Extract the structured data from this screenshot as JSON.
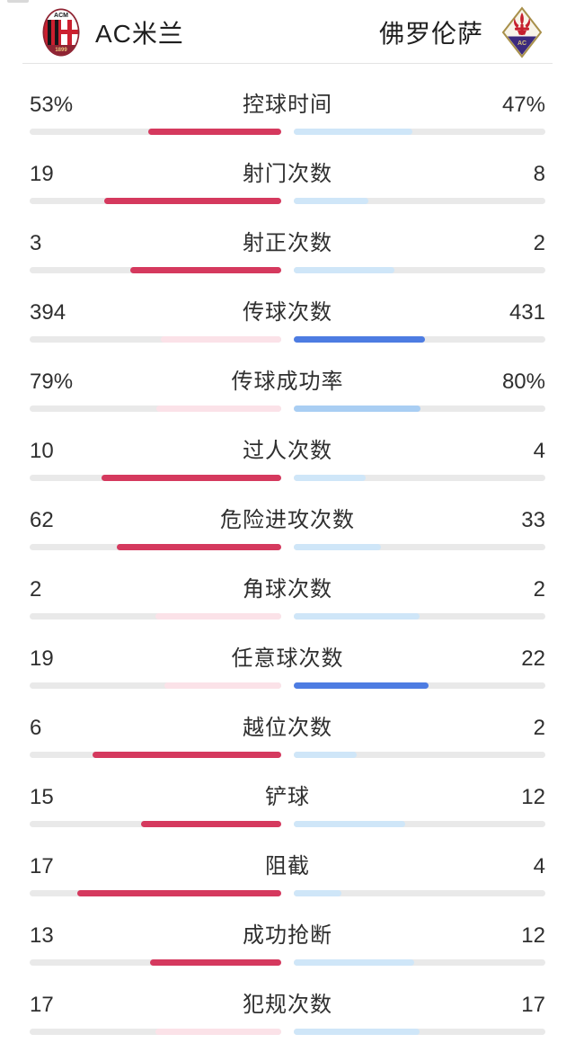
{
  "header": {
    "home": {
      "name": "AC米兰",
      "logo": "acmilan-crest"
    },
    "away": {
      "name": "佛罗伦萨",
      "logo": "fiorentina-crest"
    }
  },
  "colors": {
    "strong_home": "#d5395e",
    "pale_home": "#fbe2e8",
    "strong_away": "#4d7ce2",
    "pale_away": "#cfe6f8",
    "medium_away": "#a9cef3",
    "track": "#e9e9e9"
  },
  "stats": [
    {
      "label": "控球时间",
      "home": "53%",
      "away": "47%",
      "home_pct": 53,
      "away_pct": 47,
      "home_style": "strong",
      "away_style": "pale"
    },
    {
      "label": "射门次数",
      "home": "19",
      "away": "8",
      "home_pct": 70.4,
      "away_pct": 29.6,
      "home_style": "strong",
      "away_style": "pale"
    },
    {
      "label": "射正次数",
      "home": "3",
      "away": "2",
      "home_pct": 60,
      "away_pct": 40,
      "home_style": "strong",
      "away_style": "pale"
    },
    {
      "label": "传球次数",
      "home": "394",
      "away": "431",
      "home_pct": 47.8,
      "away_pct": 52.2,
      "home_style": "pale",
      "away_style": "strong"
    },
    {
      "label": "传球成功率",
      "home": "79%",
      "away": "80%",
      "home_pct": 49.7,
      "away_pct": 50.3,
      "home_style": "pale",
      "away_style": "medium"
    },
    {
      "label": "过人次数",
      "home": "10",
      "away": "4",
      "home_pct": 71.4,
      "away_pct": 28.6,
      "home_style": "strong",
      "away_style": "pale"
    },
    {
      "label": "危险进攻次数",
      "home": "62",
      "away": "33",
      "home_pct": 65.3,
      "away_pct": 34.7,
      "home_style": "strong",
      "away_style": "pale"
    },
    {
      "label": "角球次数",
      "home": "2",
      "away": "2",
      "home_pct": 50,
      "away_pct": 50,
      "home_style": "pale",
      "away_style": "pale"
    },
    {
      "label": "任意球次数",
      "home": "19",
      "away": "22",
      "home_pct": 46.3,
      "away_pct": 53.7,
      "home_style": "pale",
      "away_style": "strong"
    },
    {
      "label": "越位次数",
      "home": "6",
      "away": "2",
      "home_pct": 75,
      "away_pct": 25,
      "home_style": "strong",
      "away_style": "pale"
    },
    {
      "label": "铲球",
      "home": "15",
      "away": "12",
      "home_pct": 55.6,
      "away_pct": 44.4,
      "home_style": "strong",
      "away_style": "pale"
    },
    {
      "label": "阻截",
      "home": "17",
      "away": "4",
      "home_pct": 81,
      "away_pct": 19,
      "home_style": "strong",
      "away_style": "pale"
    },
    {
      "label": "成功抢断",
      "home": "13",
      "away": "12",
      "home_pct": 52,
      "away_pct": 48,
      "home_style": "strong",
      "away_style": "pale"
    },
    {
      "label": "犯规次数",
      "home": "17",
      "away": "17",
      "home_pct": 50,
      "away_pct": 50,
      "home_style": "pale",
      "away_style": "pale"
    }
  ]
}
